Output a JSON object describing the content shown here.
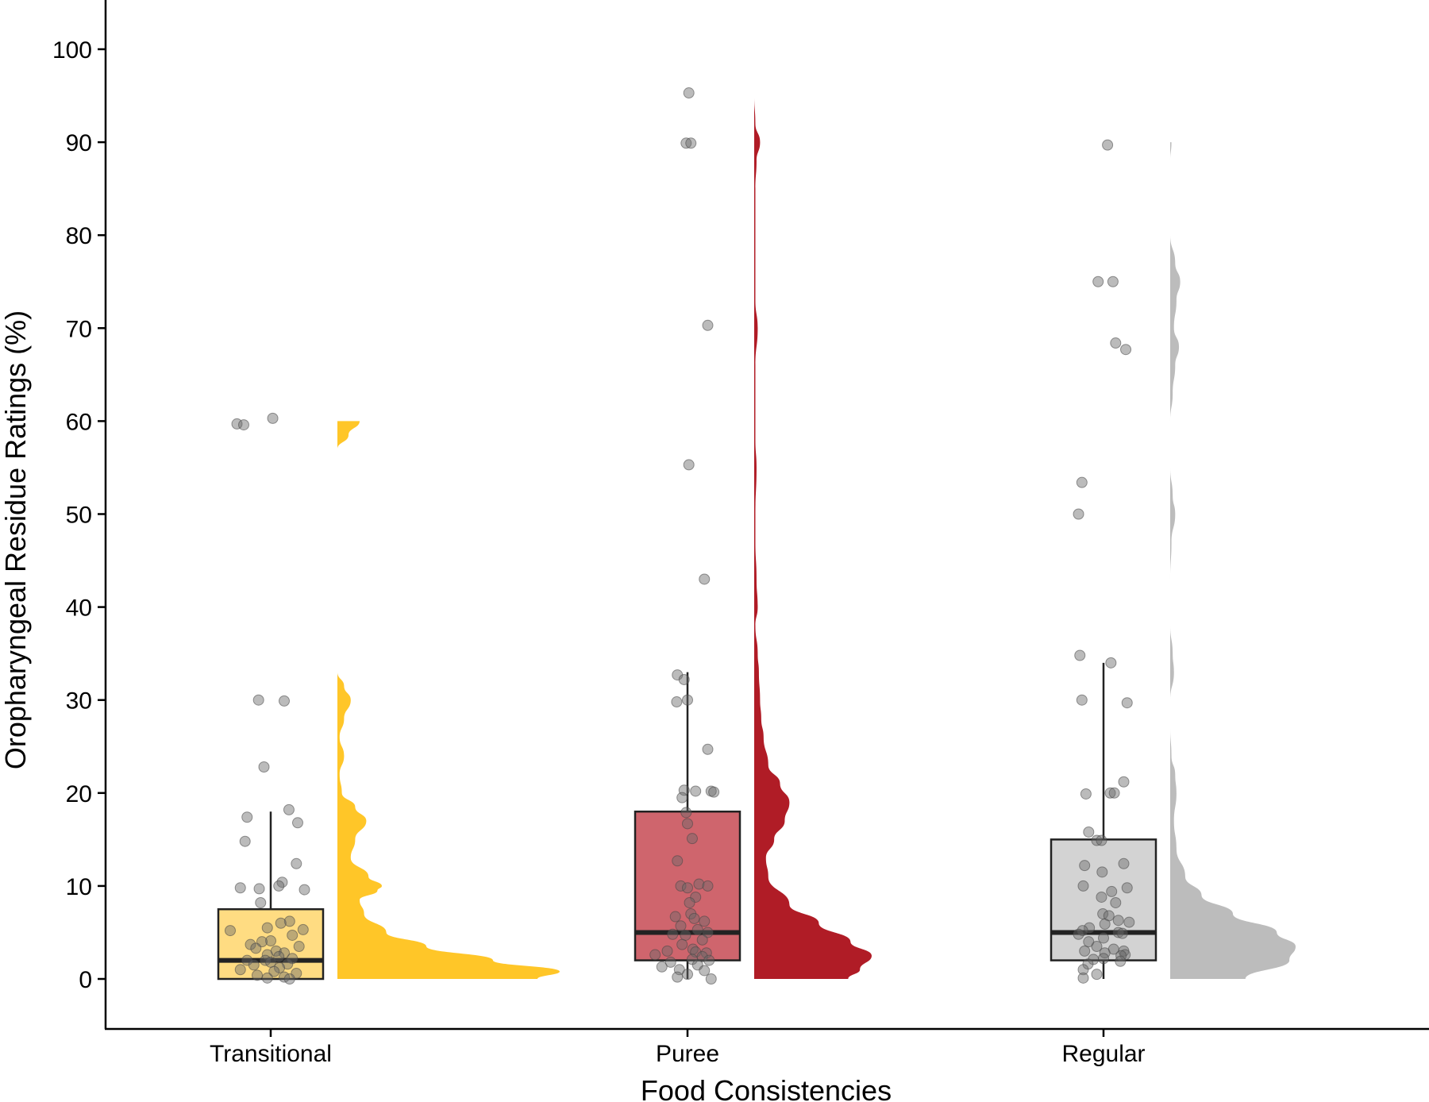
{
  "chart_data": {
    "type": "raincloud",
    "title": "",
    "xlabel": "Food Consistencies",
    "ylabel": "Oropharyngeal Residue Ratings (%)",
    "ylim": [
      -5,
      105
    ],
    "yticks": [
      0,
      10,
      20,
      30,
      40,
      50,
      60,
      70,
      80,
      90,
      100
    ],
    "categories": [
      "Transitional",
      "Puree",
      "Regular"
    ],
    "grid": false,
    "legend": "none",
    "groups": [
      {
        "category": "Transitional",
        "color": "#ffc628",
        "box_fill": "#ffdc82",
        "box": {
          "whisker_low": 0,
          "q1": 0,
          "median": 2,
          "q3": 7.5,
          "whisker_high": 18
        },
        "density": [
          [
            0,
            0.9
          ],
          [
            0.8,
            1.0
          ],
          [
            2,
            0.7
          ],
          [
            3.5,
            0.4
          ],
          [
            5,
            0.22
          ],
          [
            7,
            0.12
          ],
          [
            8.5,
            0.1
          ],
          [
            9.5,
            0.18
          ],
          [
            10,
            0.2
          ],
          [
            11,
            0.14
          ],
          [
            13,
            0.06
          ],
          [
            15,
            0.08
          ],
          [
            17,
            0.13
          ],
          [
            18.5,
            0.08
          ],
          [
            20,
            0.02
          ],
          [
            22,
            0.01
          ],
          [
            24,
            0.03
          ],
          [
            26,
            0.01
          ],
          [
            28,
            0.03
          ],
          [
            30,
            0.06
          ],
          [
            31.5,
            0.03
          ],
          [
            33,
            0
          ],
          [
            57,
            0
          ],
          [
            58.5,
            0.05
          ],
          [
            60,
            0.1
          ]
        ],
        "points": [
          [
            59.7,
            -0.5
          ],
          [
            59.6,
            -0.4
          ],
          [
            60.3,
            0.03
          ],
          [
            30,
            -0.18
          ],
          [
            29.9,
            0.2
          ],
          [
            22.8,
            -0.1
          ],
          [
            17.4,
            -0.35
          ],
          [
            18.2,
            0.27
          ],
          [
            16.8,
            0.4
          ],
          [
            14.8,
            -0.38
          ],
          [
            12.4,
            0.38
          ],
          [
            10.4,
            0.17
          ],
          [
            10.0,
            0.12
          ],
          [
            9.8,
            -0.45
          ],
          [
            9.7,
            -0.17
          ],
          [
            9.6,
            0.5
          ],
          [
            8.2,
            -0.15
          ],
          [
            6.2,
            0.28
          ],
          [
            6.0,
            0.15
          ],
          [
            5.5,
            -0.05
          ],
          [
            5.3,
            0.48
          ],
          [
            5.2,
            -0.6
          ],
          [
            4.7,
            0.32
          ],
          [
            4.1,
            0.0
          ],
          [
            4.0,
            -0.13
          ],
          [
            3.7,
            -0.3
          ],
          [
            3.5,
            0.42
          ],
          [
            3.3,
            -0.22
          ],
          [
            3.0,
            0.08
          ],
          [
            2.8,
            0.2
          ],
          [
            2.6,
            -0.05
          ],
          [
            2.4,
            0.12
          ],
          [
            2.2,
            0.32
          ],
          [
            2.0,
            -0.35
          ],
          [
            2.0,
            -0.08
          ],
          [
            1.8,
            0.0
          ],
          [
            1.6,
            0.25
          ],
          [
            1.5,
            -0.25
          ],
          [
            1.2,
            0.13
          ],
          [
            1.0,
            -0.45
          ],
          [
            0.8,
            0.05
          ],
          [
            0.6,
            0.38
          ],
          [
            0.4,
            -0.2
          ],
          [
            0.2,
            0.2
          ],
          [
            0.1,
            -0.05
          ],
          [
            0.0,
            0.28
          ]
        ]
      },
      {
        "category": "Puree",
        "color": "#b01c26",
        "box_fill": "#cf656d",
        "box": {
          "whisker_low": 0,
          "q1": 2,
          "median": 5,
          "q3": 18,
          "whisker_high": 33
        },
        "density": [
          [
            0,
            0.8
          ],
          [
            1,
            0.9
          ],
          [
            2.5,
            1.0
          ],
          [
            4,
            0.82
          ],
          [
            6,
            0.55
          ],
          [
            8,
            0.3
          ],
          [
            11,
            0.12
          ],
          [
            13,
            0.1
          ],
          [
            15,
            0.17
          ],
          [
            17,
            0.26
          ],
          [
            19,
            0.3
          ],
          [
            21,
            0.22
          ],
          [
            23,
            0.12
          ],
          [
            26,
            0.08
          ],
          [
            28,
            0.06
          ],
          [
            30,
            0.05
          ],
          [
            33,
            0.04
          ],
          [
            35,
            0.03
          ],
          [
            38,
            0.01
          ],
          [
            40,
            0.03
          ],
          [
            43,
            0.02
          ],
          [
            47,
            0.01
          ],
          [
            50,
            0.01
          ],
          [
            55,
            0.02
          ],
          [
            58,
            0.01
          ],
          [
            63,
            0.01
          ],
          [
            66,
            0.01
          ],
          [
            70,
            0.03
          ],
          [
            73,
            0.01
          ],
          [
            78,
            0.01
          ],
          [
            85,
            0.01
          ],
          [
            88,
            0.02
          ],
          [
            90,
            0.05
          ],
          [
            92,
            0.01
          ],
          [
            95,
            0.0
          ]
        ],
        "points": [
          [
            95.3,
            0.02
          ],
          [
            89.9,
            -0.02
          ],
          [
            89.9,
            0.05
          ],
          [
            70.3,
            0.3
          ],
          [
            55.3,
            0.02
          ],
          [
            43.0,
            0.25
          ],
          [
            32.7,
            -0.15
          ],
          [
            32.2,
            -0.05
          ],
          [
            30.0,
            0.0
          ],
          [
            29.8,
            -0.16
          ],
          [
            24.7,
            0.3
          ],
          [
            20.3,
            -0.05
          ],
          [
            20.2,
            0.12
          ],
          [
            20.2,
            0.35
          ],
          [
            20.1,
            0.39
          ],
          [
            19.5,
            -0.08
          ],
          [
            17.9,
            -0.02
          ],
          [
            16.7,
            0.0
          ],
          [
            15.1,
            0.07
          ],
          [
            12.7,
            -0.15
          ],
          [
            10.2,
            0.17
          ],
          [
            10.0,
            0.3
          ],
          [
            10.0,
            -0.1
          ],
          [
            9.8,
            0.0
          ],
          [
            8.8,
            0.12
          ],
          [
            8.2,
            0.03
          ],
          [
            7.0,
            0.05
          ],
          [
            6.7,
            -0.18
          ],
          [
            6.5,
            0.1
          ],
          [
            6.2,
            0.25
          ],
          [
            5.7,
            -0.1
          ],
          [
            5.3,
            0.15
          ],
          [
            5.0,
            0.3
          ],
          [
            4.8,
            -0.22
          ],
          [
            4.7,
            -0.03
          ],
          [
            4.2,
            0.22
          ],
          [
            3.7,
            -0.08
          ],
          [
            3.2,
            0.08
          ],
          [
            3.0,
            -0.3
          ],
          [
            2.9,
            0.12
          ],
          [
            2.8,
            0.28
          ],
          [
            2.6,
            -0.48
          ],
          [
            2.4,
            0.22
          ],
          [
            2.1,
            0.07
          ],
          [
            2.0,
            0.32
          ],
          [
            1.8,
            -0.25
          ],
          [
            1.5,
            0.15
          ],
          [
            1.3,
            -0.38
          ],
          [
            1.0,
            -0.12
          ],
          [
            0.9,
            0.25
          ],
          [
            0.5,
            0.0
          ],
          [
            0.2,
            -0.15
          ],
          [
            0.0,
            0.35
          ]
        ]
      },
      {
        "category": "Regular",
        "color": "#bcbcbc",
        "box_fill": "#d3d3d3",
        "box": {
          "whisker_low": 0,
          "q1": 2,
          "median": 5,
          "q3": 15,
          "whisker_high": 34
        },
        "density": [
          [
            0,
            0.6
          ],
          [
            2,
            0.95
          ],
          [
            3.5,
            1.0
          ],
          [
            5,
            0.85
          ],
          [
            7,
            0.5
          ],
          [
            9,
            0.25
          ],
          [
            11,
            0.12
          ],
          [
            14,
            0.05
          ],
          [
            17,
            0.03
          ],
          [
            20,
            0.05
          ],
          [
            22,
            0.04
          ],
          [
            24,
            0.01
          ],
          [
            27,
            0.0
          ],
          [
            30,
            0.0
          ],
          [
            33,
            0.03
          ],
          [
            35,
            0.02
          ],
          [
            38,
            0.0
          ],
          [
            43,
            0.0
          ],
          [
            47,
            0.01
          ],
          [
            50,
            0.04
          ],
          [
            52,
            0.02
          ],
          [
            55,
            0.0
          ],
          [
            58,
            0.0
          ],
          [
            60,
            0.0
          ],
          [
            63,
            0.02
          ],
          [
            66,
            0.04
          ],
          [
            68,
            0.07
          ],
          [
            70,
            0.03
          ],
          [
            73,
            0.05
          ],
          [
            75,
            0.08
          ],
          [
            77,
            0.04
          ],
          [
            80,
            0.0
          ],
          [
            85,
            0.0
          ],
          [
            88,
            0.0
          ],
          [
            90,
            0.01
          ]
        ],
        "points": [
          [
            89.7,
            0.06
          ],
          [
            75.0,
            -0.08
          ],
          [
            75.0,
            0.14
          ],
          [
            68.4,
            0.18
          ],
          [
            67.7,
            0.33
          ],
          [
            53.4,
            -0.32
          ],
          [
            50.0,
            -0.37
          ],
          [
            34.8,
            -0.35
          ],
          [
            34.0,
            0.11
          ],
          [
            30.0,
            -0.32
          ],
          [
            29.7,
            0.35
          ],
          [
            21.2,
            0.3
          ],
          [
            20.0,
            0.1
          ],
          [
            20.0,
            0.16
          ],
          [
            19.9,
            -0.26
          ],
          [
            15.8,
            -0.22
          ],
          [
            14.9,
            -0.1
          ],
          [
            14.9,
            -0.03
          ],
          [
            12.2,
            -0.28
          ],
          [
            12.4,
            0.3
          ],
          [
            11.5,
            -0.02
          ],
          [
            10.0,
            -0.3
          ],
          [
            9.8,
            0.35
          ],
          [
            9.4,
            0.12
          ],
          [
            8.8,
            -0.03
          ],
          [
            8.2,
            0.18
          ],
          [
            7.0,
            -0.01
          ],
          [
            6.8,
            0.08
          ],
          [
            6.3,
            0.22
          ],
          [
            6.1,
            0.38
          ],
          [
            5.9,
            0.02
          ],
          [
            5.5,
            -0.21
          ],
          [
            5.2,
            -0.31
          ],
          [
            5.0,
            0.22
          ],
          [
            4.9,
            0.28
          ],
          [
            4.8,
            -0.37
          ],
          [
            4.4,
            0.0
          ],
          [
            4.0,
            -0.22
          ],
          [
            3.5,
            -0.1
          ],
          [
            3.2,
            0.15
          ],
          [
            3.0,
            -0.28
          ],
          [
            3.0,
            0.3
          ],
          [
            2.8,
            0.02
          ],
          [
            2.6,
            0.32
          ],
          [
            2.5,
            0.26
          ],
          [
            2.2,
            0.0
          ],
          [
            2.1,
            -0.15
          ],
          [
            1.9,
            0.25
          ],
          [
            1.6,
            -0.23
          ],
          [
            1.0,
            -0.3
          ],
          [
            0.5,
            -0.1
          ],
          [
            0.1,
            -0.3
          ]
        ]
      }
    ]
  }
}
